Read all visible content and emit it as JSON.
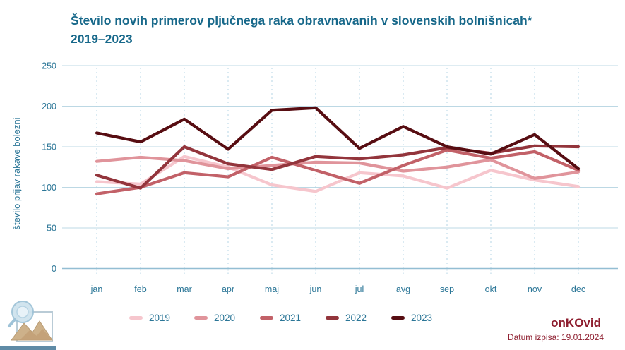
{
  "title": {
    "line1": "Število novih primerov pljučnega raka obravnavanih v slovenskih bolnišnicah*",
    "line2": "2019–2023"
  },
  "y_axis_title": "število prijav rakave bolezni",
  "chart_data": {
    "type": "line",
    "title": "Število novih primerov pljučnega raka obravnavanih v slovenskih bolnišnicah* 2019–2023",
    "xlabel": "",
    "ylabel": "število prijav rakave bolezni",
    "ylim": [
      0,
      250
    ],
    "y_ticks": [
      0,
      50,
      100,
      150,
      200,
      250
    ],
    "grid": true,
    "legend_position": "bottom",
    "categories": [
      "jan",
      "feb",
      "mar",
      "apr",
      "maj",
      "jun",
      "jul",
      "avg",
      "sep",
      "okt",
      "nov",
      "dec"
    ],
    "series": [
      {
        "name": "2019",
        "color": "#f6c6cd",
        "values": [
          107,
          104,
          138,
          125,
          103,
          95,
          118,
          114,
          99,
          121,
          109,
          101
        ]
      },
      {
        "name": "2020",
        "color": "#e0949b",
        "values": [
          132,
          137,
          133,
          123,
          127,
          131,
          130,
          120,
          125,
          134,
          111,
          119
        ]
      },
      {
        "name": "2021",
        "color": "#c26168",
        "values": [
          92,
          100,
          118,
          113,
          137,
          121,
          105,
          127,
          146,
          136,
          144,
          121
        ]
      },
      {
        "name": "2022",
        "color": "#93353c",
        "values": [
          115,
          99,
          150,
          129,
          122,
          138,
          135,
          140,
          149,
          142,
          151,
          150
        ]
      },
      {
        "name": "2023",
        "color": "#570d12",
        "values": [
          167,
          156,
          184,
          147,
          195,
          198,
          148,
          175,
          150,
          141,
          165,
          123
        ]
      }
    ]
  },
  "footer": {
    "brand": "onKOvid",
    "print_date": "Datum izpisa: 19.01.2024"
  },
  "colors": {
    "title": "#17688a",
    "axis_label": "#2b7697",
    "gridline": "#bcd8e4",
    "gridline_dashed": "#b5d4e4",
    "baseline": "#93bed3",
    "brand_red": "#8e1e2f",
    "strip_blue": "#5f8ba6"
  }
}
